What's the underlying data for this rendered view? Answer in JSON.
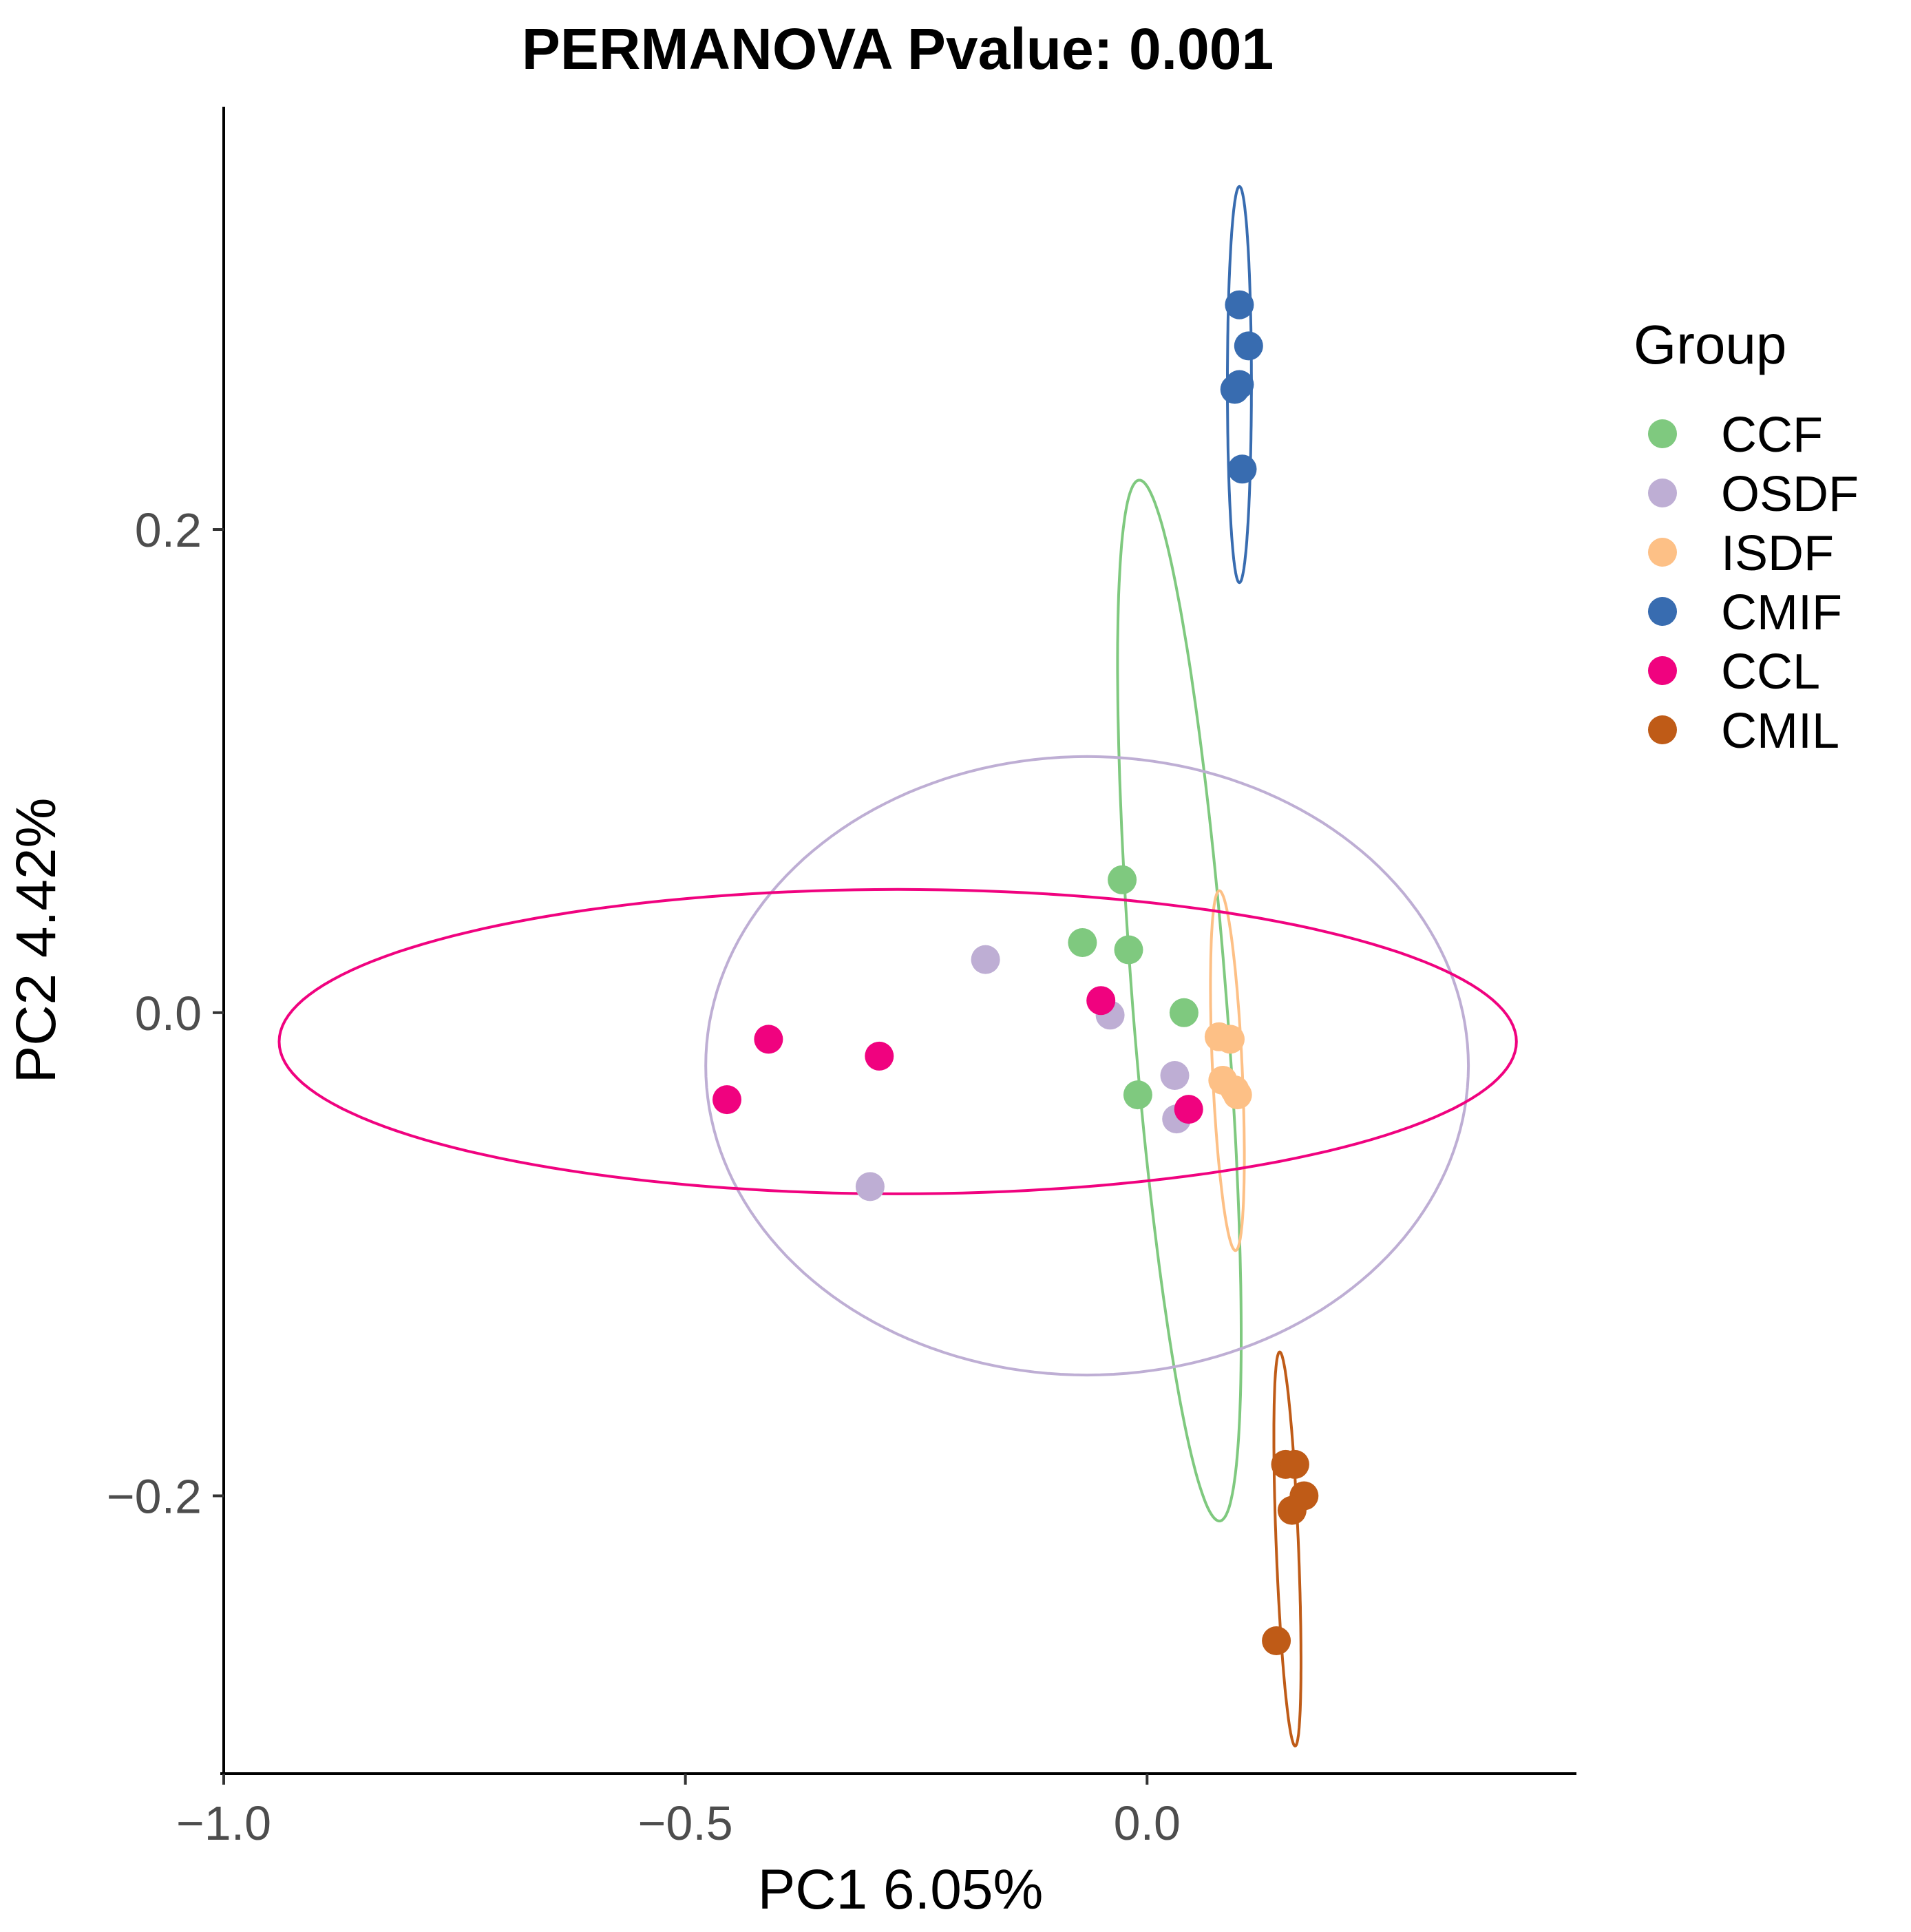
{
  "chart_data": {
    "type": "scatter",
    "title": "PERMANOVA Pvalue: 0.001",
    "xlabel": "PC1 6.05%",
    "ylabel": "PC2 4.42%",
    "xlim": [
      -1.0,
      0.465
    ],
    "ylim": [
      -0.315,
      0.375
    ],
    "x_ticks": [
      {
        "value": -1.0,
        "label": "−1.0"
      },
      {
        "value": -0.5,
        "label": "−0.5"
      },
      {
        "value": 0.0,
        "label": "0.0"
      }
    ],
    "y_ticks": [
      {
        "value": 0.2,
        "label": "0.2"
      },
      {
        "value": 0.0,
        "label": "0.0"
      },
      {
        "value": -0.2,
        "label": "−0.2"
      }
    ],
    "grid": false,
    "legend": {
      "title": "Group",
      "position": "right"
    },
    "series": [
      {
        "name": "CCF",
        "color": "#7fc97f",
        "points": [
          [
            -0.027,
            0.055
          ],
          [
            -0.07,
            0.029
          ],
          [
            -0.02,
            0.026
          ],
          [
            0.04,
            0.0
          ],
          [
            -0.01,
            -0.034
          ]
        ],
        "ellipse": {
          "cx": 0.035,
          "cy": 0.005,
          "rx": 0.22,
          "ry": 0.05,
          "angle_deg": -78
        }
      },
      {
        "name": "OSDF",
        "color": "#beaed4",
        "points": [
          [
            -0.175,
            0.022
          ],
          [
            -0.04,
            -0.001
          ],
          [
            0.03,
            -0.026
          ],
          [
            0.032,
            -0.044
          ],
          [
            -0.3,
            -0.072
          ]
        ],
        "ellipse": {
          "cx": -0.065,
          "cy": -0.022,
          "rx": 0.413,
          "ry": 0.128,
          "angle_deg": 0
        }
      },
      {
        "name": "ISDF",
        "color": "#fdc086",
        "points": [
          [
            0.078,
            -0.01
          ],
          [
            0.09,
            -0.011
          ],
          [
            0.082,
            -0.028
          ],
          [
            0.095,
            -0.032
          ],
          [
            0.098,
            -0.034
          ]
        ],
        "ellipse": {
          "cx": 0.087,
          "cy": -0.024,
          "rx": 0.075,
          "ry": 0.016,
          "angle_deg": -83
        }
      },
      {
        "name": "CMIF",
        "color": "#386cb0",
        "points": [
          [
            0.1,
            0.293
          ],
          [
            0.11,
            0.276
          ],
          [
            0.095,
            0.258
          ],
          [
            0.1,
            0.26
          ],
          [
            0.103,
            0.225
          ]
        ],
        "ellipse": {
          "cx": 0.1,
          "cy": 0.26,
          "rx": 0.082,
          "ry": 0.013,
          "angle_deg": -90
        }
      },
      {
        "name": "CCL",
        "color": "#f0027f",
        "points": [
          [
            -0.41,
            -0.011
          ],
          [
            -0.29,
            -0.018
          ],
          [
            -0.455,
            -0.036
          ],
          [
            -0.05,
            0.005
          ],
          [
            0.045,
            -0.04
          ]
        ],
        "ellipse": {
          "cx": -0.27,
          "cy": -0.012,
          "rx": 0.67,
          "ry": 0.063,
          "angle_deg": 0
        }
      },
      {
        "name": "CMIL",
        "color": "#bf5b17",
        "points": [
          [
            0.15,
            -0.187
          ],
          [
            0.16,
            -0.187
          ],
          [
            0.17,
            -0.2
          ],
          [
            0.157,
            -0.206
          ],
          [
            0.14,
            -0.26
          ]
        ],
        "ellipse": {
          "cx": 0.152,
          "cy": -0.222,
          "rx": 0.082,
          "ry": 0.012,
          "angle_deg": -84
        }
      }
    ]
  }
}
